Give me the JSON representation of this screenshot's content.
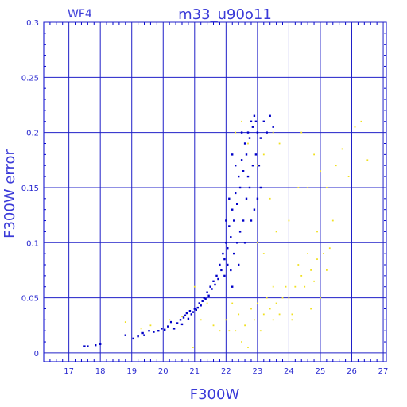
{
  "chart_data": {
    "type": "scatter",
    "title": "m33_u90o11",
    "chip_label": "WF4",
    "xlabel": "F300W",
    "ylabel": "F300W error",
    "xlim": [
      16.2,
      27.1
    ],
    "ylim": [
      -0.008,
      0.3
    ],
    "x_ticks": [
      "17",
      "18",
      "19",
      "20",
      "21",
      "22",
      "23",
      "24",
      "25",
      "26",
      "27"
    ],
    "y_ticks": [
      "0",
      "0.05",
      "0.1",
      "0.15",
      "0.2",
      "0.25",
      "0.3"
    ],
    "grid": true,
    "colors": {
      "axes": "#0000cc",
      "grid": "#2020c8",
      "series_blue": "#0000c8",
      "series_yellow": "#f0e020"
    },
    "series": [
      {
        "color": "series_blue",
        "points": [
          [
            17.5,
            0.006
          ],
          [
            17.6,
            0.006
          ],
          [
            17.85,
            0.007
          ],
          [
            18.0,
            0.008
          ],
          [
            18.8,
            0.016
          ],
          [
            19.05,
            0.013
          ],
          [
            19.2,
            0.015
          ],
          [
            19.35,
            0.018
          ],
          [
            19.4,
            0.016
          ],
          [
            19.55,
            0.02
          ],
          [
            19.7,
            0.019
          ],
          [
            19.85,
            0.02
          ],
          [
            19.95,
            0.022
          ],
          [
            20.05,
            0.021
          ],
          [
            20.15,
            0.024
          ],
          [
            20.25,
            0.028
          ],
          [
            20.35,
            0.022
          ],
          [
            20.45,
            0.027
          ],
          [
            20.55,
            0.03
          ],
          [
            20.6,
            0.026
          ],
          [
            20.65,
            0.032
          ],
          [
            20.7,
            0.034
          ],
          [
            20.75,
            0.036
          ],
          [
            20.8,
            0.031
          ],
          [
            20.85,
            0.038
          ],
          [
            20.9,
            0.035
          ],
          [
            20.95,
            0.037
          ],
          [
            21.0,
            0.04
          ],
          [
            21.05,
            0.039
          ],
          [
            21.1,
            0.041
          ],
          [
            21.15,
            0.045
          ],
          [
            21.2,
            0.043
          ],
          [
            21.25,
            0.047
          ],
          [
            21.3,
            0.05
          ],
          [
            21.35,
            0.049
          ],
          [
            21.4,
            0.055
          ],
          [
            21.45,
            0.052
          ],
          [
            21.5,
            0.06
          ],
          [
            21.55,
            0.058
          ],
          [
            21.6,
            0.065
          ],
          [
            21.65,
            0.062
          ],
          [
            21.7,
            0.07
          ],
          [
            21.75,
            0.067
          ],
          [
            21.8,
            0.08
          ],
          [
            21.85,
            0.075
          ],
          [
            21.9,
            0.09
          ],
          [
            21.95,
            0.085
          ],
          [
            22.0,
            0.1
          ],
          [
            22.05,
            0.095
          ],
          [
            22.1,
            0.115
          ],
          [
            22.15,
            0.105
          ],
          [
            22.2,
            0.13
          ],
          [
            22.25,
            0.12
          ],
          [
            22.3,
            0.145
          ],
          [
            22.35,
            0.135
          ],
          [
            22.4,
            0.16
          ],
          [
            22.45,
            0.15
          ],
          [
            22.5,
            0.175
          ],
          [
            22.55,
            0.165
          ],
          [
            22.6,
            0.19
          ],
          [
            22.65,
            0.18
          ],
          [
            22.7,
            0.2
          ],
          [
            22.75,
            0.195
          ],
          [
            22.8,
            0.21
          ],
          [
            22.85,
            0.205
          ],
          [
            22.9,
            0.215
          ],
          [
            22.95,
            0.21
          ],
          [
            23.0,
            0.2
          ],
          [
            23.1,
            0.195
          ],
          [
            23.2,
            0.21
          ],
          [
            23.3,
            0.2
          ],
          [
            23.4,
            0.215
          ],
          [
            23.5,
            0.205
          ],
          [
            21.95,
            0.07
          ],
          [
            22.05,
            0.08
          ],
          [
            22.15,
            0.075
          ],
          [
            22.25,
            0.09
          ],
          [
            22.35,
            0.1
          ],
          [
            22.45,
            0.11
          ],
          [
            22.55,
            0.12
          ],
          [
            22.65,
            0.14
          ],
          [
            22.75,
            0.15
          ],
          [
            22.85,
            0.17
          ],
          [
            22.95,
            0.18
          ],
          [
            23.05,
            0.17
          ],
          [
            22.2,
            0.06
          ],
          [
            22.4,
            0.08
          ],
          [
            22.6,
            0.1
          ],
          [
            22.8,
            0.12
          ],
          [
            23.0,
            0.14
          ],
          [
            22.1,
            0.14
          ],
          [
            22.3,
            0.17
          ],
          [
            22.5,
            0.2
          ],
          [
            22.7,
            0.16
          ],
          [
            22.9,
            0.13
          ],
          [
            23.1,
            0.15
          ],
          [
            22.0,
            0.12
          ],
          [
            22.2,
            0.18
          ]
        ]
      },
      {
        "color": "series_yellow",
        "points": [
          [
            18.8,
            0.028
          ],
          [
            19.3,
            0.022
          ],
          [
            19.6,
            0.025
          ],
          [
            20.2,
            0.03
          ],
          [
            20.6,
            0.033
          ],
          [
            20.95,
            0.005
          ],
          [
            21.0,
            0.06
          ],
          [
            21.2,
            0.03
          ],
          [
            21.4,
            0.045
          ],
          [
            21.6,
            0.025
          ],
          [
            21.8,
            0.02
          ],
          [
            22.0,
            0.03
          ],
          [
            22.2,
            0.045
          ],
          [
            22.3,
            0.02
          ],
          [
            22.4,
            0.035
          ],
          [
            22.5,
            0.01
          ],
          [
            22.6,
            0.025
          ],
          [
            22.7,
            0.005
          ],
          [
            22.8,
            0.04
          ],
          [
            22.9,
            0.03
          ],
          [
            23.0,
            0.045
          ],
          [
            23.1,
            0.02
          ],
          [
            23.2,
            0.035
          ],
          [
            23.3,
            0.05
          ],
          [
            23.4,
            0.04
          ],
          [
            23.5,
            0.03
          ],
          [
            23.6,
            0.045
          ],
          [
            23.7,
            0.035
          ],
          [
            23.8,
            0.05
          ],
          [
            23.9,
            0.06
          ],
          [
            24.0,
            0.05
          ],
          [
            24.1,
            0.035
          ],
          [
            24.2,
            0.06
          ],
          [
            24.3,
            0.08
          ],
          [
            24.4,
            0.07
          ],
          [
            24.5,
            0.06
          ],
          [
            24.6,
            0.09
          ],
          [
            24.7,
            0.075
          ],
          [
            24.8,
            0.065
          ],
          [
            24.9,
            0.085
          ],
          [
            25.0,
            0.05
          ],
          [
            25.1,
            0.09
          ],
          [
            25.2,
            0.075
          ],
          [
            25.3,
            0.095
          ],
          [
            24.4,
            0.2
          ],
          [
            24.6,
            0.15
          ],
          [
            24.8,
            0.18
          ],
          [
            25.0,
            0.165
          ],
          [
            25.2,
            0.15
          ],
          [
            25.5,
            0.17
          ],
          [
            25.7,
            0.185
          ],
          [
            25.9,
            0.16
          ],
          [
            26.1,
            0.205
          ],
          [
            26.3,
            0.21
          ],
          [
            26.5,
            0.175
          ],
          [
            22.3,
            0.2
          ],
          [
            22.5,
            0.21
          ],
          [
            22.7,
            0.19
          ],
          [
            23.0,
            0.17
          ],
          [
            23.2,
            0.18
          ],
          [
            23.5,
            0.2
          ],
          [
            23.7,
            0.19
          ],
          [
            23.4,
            0.14
          ],
          [
            23.6,
            0.11
          ],
          [
            23.2,
            0.09
          ],
          [
            23.0,
            0.1
          ],
          [
            22.8,
            0.12
          ],
          [
            24.0,
            0.12
          ],
          [
            24.3,
            0.15
          ],
          [
            24.9,
            0.11
          ],
          [
            25.4,
            0.12
          ],
          [
            22.1,
            0.02
          ],
          [
            23.5,
            0.06
          ],
          [
            24.1,
            0.03
          ],
          [
            24.7,
            0.04
          ]
        ]
      }
    ]
  }
}
